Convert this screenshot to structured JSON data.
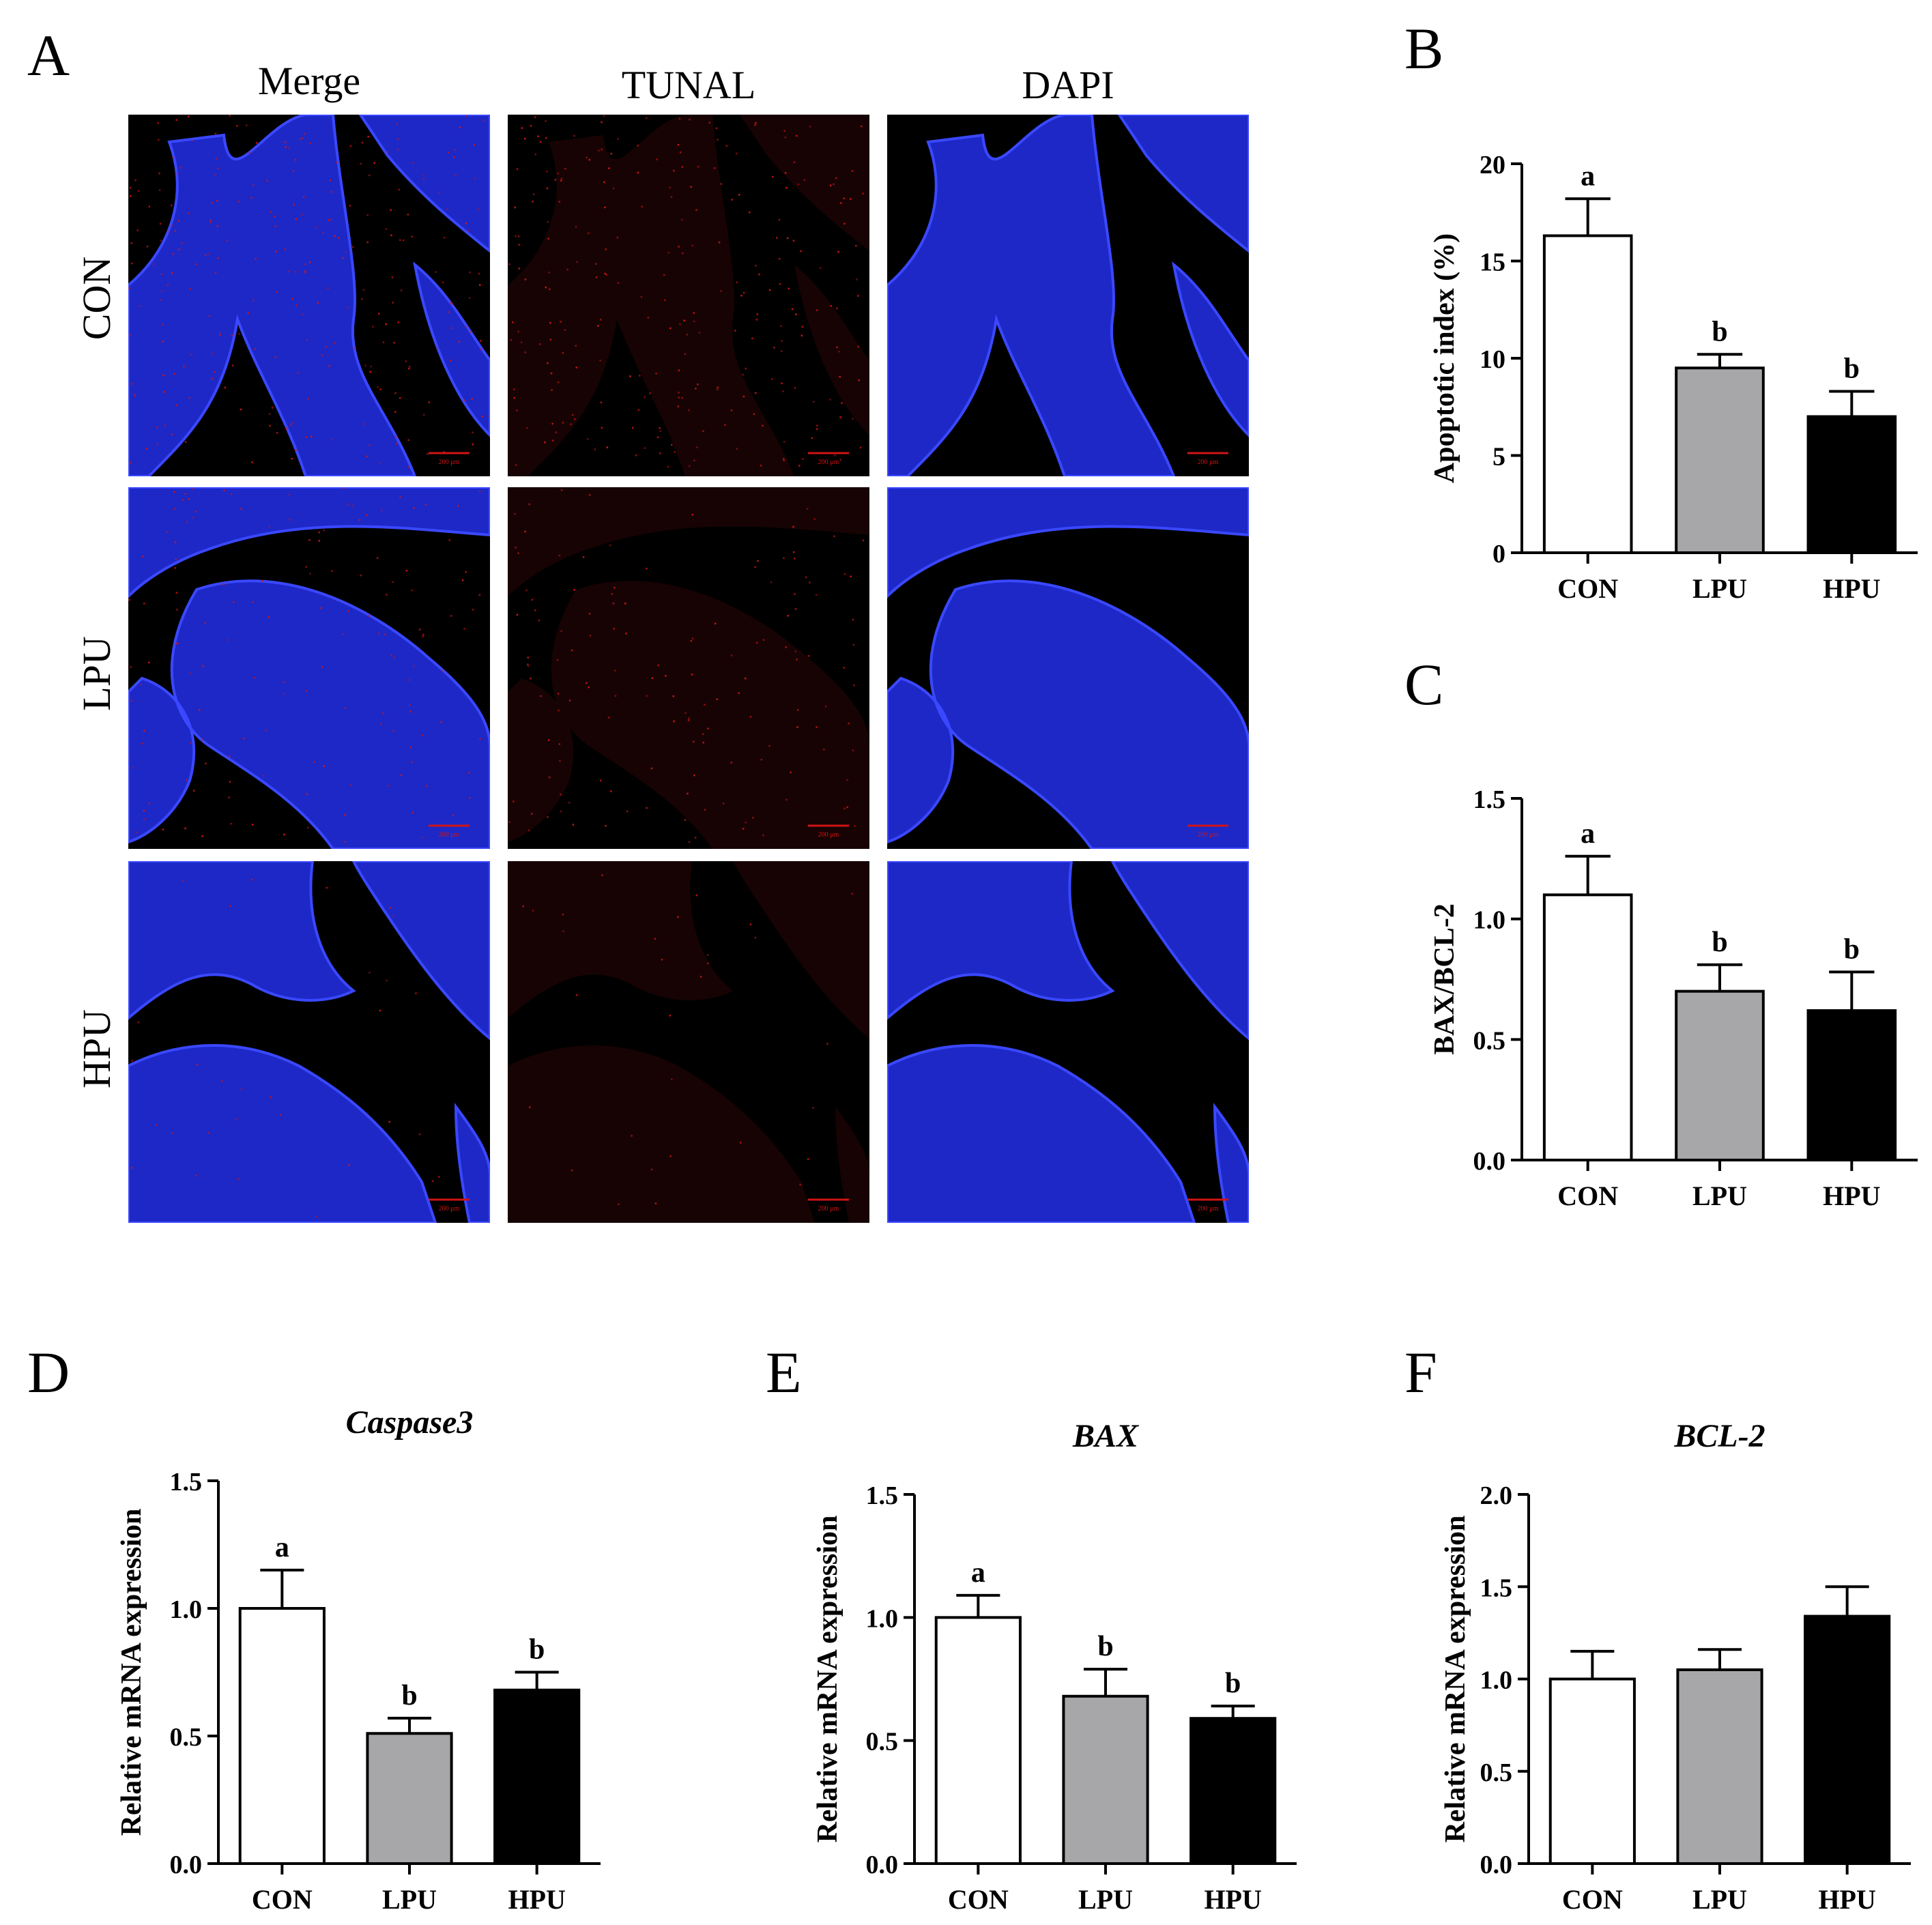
{
  "panelA": {
    "letter": "A",
    "columns": [
      "Merge",
      "TUNAL",
      "DAPI"
    ],
    "rows": [
      "CON",
      "LPU",
      "HPU"
    ],
    "scale_bar": "200 μm",
    "colors": {
      "tissue_blue": "#1f2bd8",
      "tunel_red": "#d01414",
      "background": "#000000"
    }
  },
  "chart_data": [
    {
      "letter": "B",
      "type": "bar",
      "title": "",
      "ylabel": "Apoptotic index (%)",
      "categories": [
        "CON",
        "LPU",
        "HPU"
      ],
      "values": [
        16.3,
        9.5,
        7.0
      ],
      "errors": [
        1.9,
        0.7,
        1.3
      ],
      "sig_labels": [
        "a",
        "b",
        "b"
      ],
      "ylim": [
        0,
        20
      ],
      "yticks": [
        "0",
        "5",
        "10",
        "15",
        "20"
      ],
      "ytick_values": [
        0,
        5,
        10,
        15,
        20
      ],
      "title_italic": false,
      "bar_colors": [
        "#ffffff",
        "#a7a7aa",
        "#000000"
      ]
    },
    {
      "letter": "C",
      "type": "bar",
      "title": "",
      "ylabel": "BAX/BCL-2",
      "categories": [
        "CON",
        "LPU",
        "HPU"
      ],
      "values": [
        1.1,
        0.7,
        0.62
      ],
      "errors": [
        0.16,
        0.11,
        0.16
      ],
      "sig_labels": [
        "a",
        "b",
        "b"
      ],
      "ylim": [
        0,
        1.5
      ],
      "yticks": [
        "0.0",
        "0.5",
        "1.0",
        "1.5"
      ],
      "ytick_values": [
        0,
        0.5,
        1.0,
        1.5
      ],
      "title_italic": false,
      "bar_colors": [
        "#ffffff",
        "#a7a7aa",
        "#000000"
      ]
    },
    {
      "letter": "D",
      "type": "bar",
      "title": "Caspase3",
      "ylabel": "Relative mRNA expression",
      "categories": [
        "CON",
        "LPU",
        "HPU"
      ],
      "values": [
        1.0,
        0.51,
        0.68
      ],
      "errors": [
        0.15,
        0.06,
        0.07
      ],
      "sig_labels": [
        "a",
        "b",
        "b"
      ],
      "ylim": [
        0,
        1.5
      ],
      "yticks": [
        "0.0",
        "0.5",
        "1.0",
        "1.5"
      ],
      "ytick_values": [
        0,
        0.5,
        1.0,
        1.5
      ],
      "title_italic": true,
      "bar_colors": [
        "#ffffff",
        "#a7a7aa",
        "#000000"
      ]
    },
    {
      "letter": "E",
      "type": "bar",
      "title": "BAX",
      "ylabel": "Relative mRNA expression",
      "categories": [
        "CON",
        "LPU",
        "HPU"
      ],
      "values": [
        1.0,
        0.68,
        0.59
      ],
      "errors": [
        0.09,
        0.11,
        0.05
      ],
      "sig_labels": [
        "a",
        "b",
        "b"
      ],
      "ylim": [
        0,
        1.5
      ],
      "yticks": [
        "0.0",
        "0.5",
        "1.0",
        "1.5"
      ],
      "ytick_values": [
        0,
        0.5,
        1.0,
        1.5
      ],
      "title_italic": true,
      "bar_colors": [
        "#ffffff",
        "#a7a7aa",
        "#000000"
      ]
    },
    {
      "letter": "F",
      "type": "bar",
      "title": "BCL-2",
      "ylabel": "Relative mRNA expression",
      "categories": [
        "CON",
        "LPU",
        "HPU"
      ],
      "values": [
        1.0,
        1.05,
        1.34
      ],
      "errors": [
        0.15,
        0.11,
        0.16
      ],
      "sig_labels": [
        "",
        "",
        ""
      ],
      "ylim": [
        0,
        2.0
      ],
      "yticks": [
        "0.0",
        "0.5",
        "1.0",
        "1.5",
        "2.0"
      ],
      "ytick_values": [
        0,
        0.5,
        1.0,
        1.5,
        2.0
      ],
      "title_italic": true,
      "bar_colors": [
        "#ffffff",
        "#a7a7aa",
        "#000000"
      ]
    }
  ]
}
